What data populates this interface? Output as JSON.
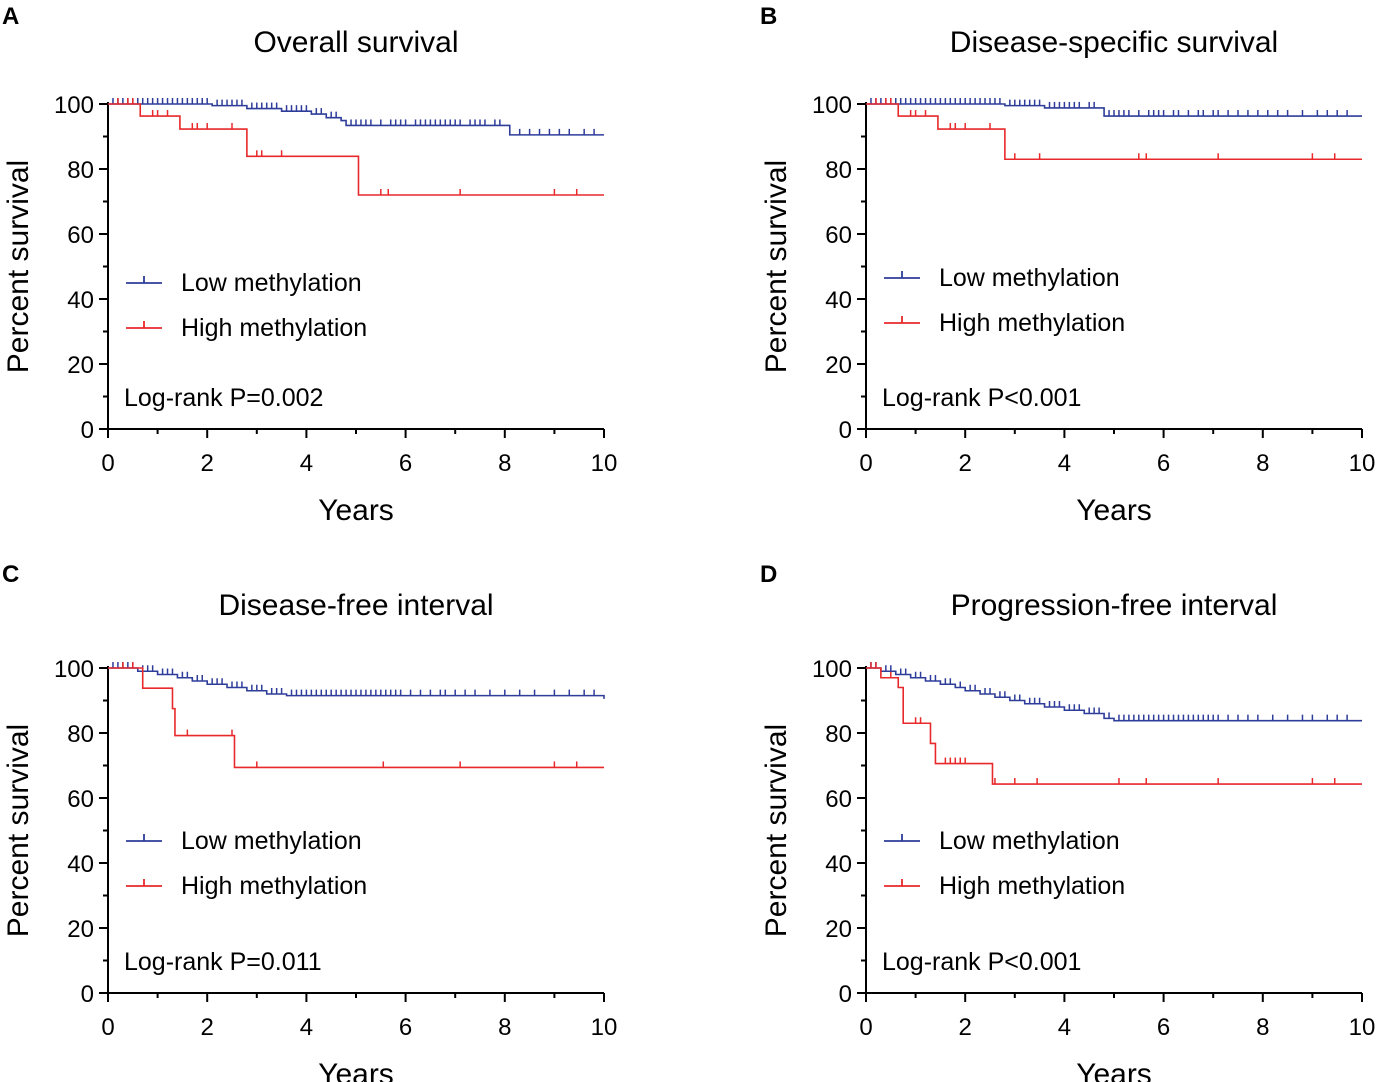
{
  "colors": {
    "low": "#2e3d9a",
    "high": "#e8292b",
    "axis": "#000000"
  },
  "chart_data": [
    {
      "type": "line",
      "subtype": "kaplan-meier",
      "panel": "A",
      "title": "Overall survival",
      "xlabel": "Years",
      "ylabel": "Percent survival",
      "xlim": [
        0,
        10
      ],
      "ylim": [
        0,
        100
      ],
      "xticks": [
        0,
        2,
        4,
        6,
        8,
        10
      ],
      "yticks": [
        0,
        20,
        40,
        60,
        80,
        100
      ],
      "legend_position": "center-left",
      "annotation": "Log-rank P=0.002",
      "series": [
        {
          "name": "Low methylation",
          "color_key": "low",
          "steps": [
            [
              0,
              100
            ],
            [
              2.1,
              99.5
            ],
            [
              2.8,
              98.6
            ],
            [
              3.5,
              97.8
            ],
            [
              4.1,
              96.9
            ],
            [
              4.4,
              95.8
            ],
            [
              4.7,
              94.9
            ],
            [
              4.8,
              93.4
            ],
            [
              8.1,
              90.5
            ],
            [
              10,
              90.5
            ]
          ],
          "censors": [
            0.1,
            0.2,
            0.3,
            0.4,
            0.5,
            0.6,
            0.7,
            0.8,
            0.9,
            1.0,
            1.1,
            1.2,
            1.3,
            1.4,
            1.5,
            1.6,
            1.7,
            1.8,
            1.9,
            2.0,
            2.2,
            2.3,
            2.4,
            2.5,
            2.6,
            2.7,
            2.9,
            3.0,
            3.1,
            3.2,
            3.3,
            3.4,
            3.6,
            3.7,
            3.8,
            3.9,
            4.0,
            4.2,
            4.3,
            4.5,
            4.6,
            4.9,
            5.0,
            5.1,
            5.2,
            5.3,
            5.5,
            5.7,
            5.8,
            5.9,
            6.0,
            6.2,
            6.3,
            6.4,
            6.5,
            6.6,
            6.7,
            6.8,
            6.9,
            7.0,
            7.1,
            7.3,
            7.4,
            7.5,
            7.6,
            7.8,
            7.9,
            8.3,
            8.5,
            8.7,
            8.9,
            9.1,
            9.3,
            9.6,
            9.8
          ]
        },
        {
          "name": "High methylation",
          "color_key": "high",
          "steps": [
            [
              0,
              100
            ],
            [
              0.65,
              96.3
            ],
            [
              1.45,
              92.3
            ],
            [
              2.8,
              83.9
            ],
            [
              5.05,
              72
            ],
            [
              10,
              72
            ]
          ],
          "censors": [
            0.2,
            0.4,
            0.5,
            0.9,
            1.0,
            1.2,
            1.7,
            1.8,
            2.0,
            2.5,
            3.0,
            3.1,
            3.5,
            5.5,
            5.65,
            7.1,
            9.0,
            9.45
          ]
        }
      ]
    },
    {
      "type": "line",
      "subtype": "kaplan-meier",
      "panel": "B",
      "title": "Disease-specific survival",
      "xlabel": "Years",
      "ylabel": "Percent survival",
      "xlim": [
        0,
        10
      ],
      "ylim": [
        0,
        100
      ],
      "xticks": [
        0,
        2,
        4,
        6,
        8,
        10
      ],
      "yticks": [
        0,
        20,
        40,
        60,
        80,
        100
      ],
      "legend_position": "center-left",
      "annotation": "Log-rank P<0.001",
      "series": [
        {
          "name": "Low methylation",
          "color_key": "low",
          "steps": [
            [
              0,
              100
            ],
            [
              2.8,
              99.5
            ],
            [
              3.6,
              98.8
            ],
            [
              4.8,
              96.3
            ],
            [
              10,
              96.3
            ]
          ],
          "censors": [
            0.1,
            0.2,
            0.3,
            0.4,
            0.5,
            0.6,
            0.7,
            0.8,
            0.9,
            1.0,
            1.1,
            1.2,
            1.3,
            1.4,
            1.5,
            1.6,
            1.7,
            1.8,
            1.9,
            2.0,
            2.1,
            2.2,
            2.3,
            2.4,
            2.5,
            2.6,
            2.7,
            2.9,
            3.0,
            3.1,
            3.2,
            3.3,
            3.4,
            3.5,
            3.7,
            3.8,
            3.9,
            4.0,
            4.1,
            4.2,
            4.3,
            4.5,
            4.6,
            4.9,
            5.0,
            5.1,
            5.2,
            5.3,
            5.5,
            5.7,
            5.8,
            5.9,
            6.0,
            6.2,
            6.3,
            6.5,
            6.7,
            6.8,
            7.0,
            7.1,
            7.3,
            7.5,
            7.7,
            7.9,
            8.1,
            8.3,
            8.5,
            8.8,
            9.1,
            9.3,
            9.5,
            9.7
          ]
        },
        {
          "name": "High methylation",
          "color_key": "high",
          "steps": [
            [
              0,
              100
            ],
            [
              0.65,
              96.3
            ],
            [
              1.45,
              92.3
            ],
            [
              2.8,
              83
            ],
            [
              10,
              83
            ]
          ],
          "censors": [
            0.2,
            0.4,
            0.5,
            0.9,
            1.0,
            1.2,
            1.7,
            1.8,
            2.0,
            2.5,
            3.0,
            3.5,
            5.5,
            5.65,
            7.1,
            9.0,
            9.45
          ]
        }
      ]
    },
    {
      "type": "line",
      "subtype": "kaplan-meier",
      "panel": "C",
      "title": "Disease-free interval",
      "xlabel": "Years",
      "ylabel": "Percent survival",
      "xlim": [
        0,
        10
      ],
      "ylim": [
        0,
        100
      ],
      "xticks": [
        0,
        2,
        4,
        6,
        8,
        10
      ],
      "yticks": [
        0,
        20,
        40,
        60,
        80,
        100
      ],
      "legend_position": "center-left",
      "annotation": "Log-rank P=0.011",
      "series": [
        {
          "name": "Low methylation",
          "color_key": "low",
          "steps": [
            [
              0,
              100
            ],
            [
              0.6,
              99
            ],
            [
              1.0,
              98
            ],
            [
              1.4,
              97
            ],
            [
              1.7,
              96
            ],
            [
              2.0,
              95
            ],
            [
              2.4,
              94
            ],
            [
              2.8,
              93
            ],
            [
              3.2,
              92
            ],
            [
              3.6,
              91.5
            ],
            [
              10,
              90.5
            ]
          ],
          "censors": [
            0.1,
            0.2,
            0.3,
            0.4,
            0.5,
            0.7,
            0.8,
            0.9,
            1.1,
            1.2,
            1.3,
            1.5,
            1.6,
            1.8,
            1.9,
            2.1,
            2.2,
            2.3,
            2.5,
            2.6,
            2.7,
            2.9,
            3.0,
            3.1,
            3.3,
            3.4,
            3.5,
            3.7,
            3.8,
            3.9,
            4.0,
            4.1,
            4.2,
            4.3,
            4.4,
            4.5,
            4.6,
            4.7,
            4.8,
            4.9,
            5.0,
            5.1,
            5.2,
            5.3,
            5.4,
            5.5,
            5.6,
            5.7,
            5.8,
            5.9,
            6.1,
            6.3,
            6.5,
            6.7,
            6.8,
            7.0,
            7.2,
            7.4,
            7.7,
            8.0,
            8.3,
            8.6,
            9.0,
            9.3,
            9.6,
            9.8
          ]
        },
        {
          "name": "High methylation",
          "color_key": "high",
          "steps": [
            [
              0,
              100
            ],
            [
              0.7,
              93.8
            ],
            [
              1.3,
              87.5
            ],
            [
              1.35,
              79.2
            ],
            [
              2.55,
              69.4
            ],
            [
              10,
              69.4
            ]
          ],
          "censors": [
            0.3,
            0.5,
            1.6,
            2.5,
            3.0,
            5.55,
            7.1,
            9.0,
            9.45
          ]
        }
      ]
    },
    {
      "type": "line",
      "subtype": "kaplan-meier",
      "panel": "D",
      "title": "Progression-free interval",
      "xlabel": "Years",
      "ylabel": "Percent survival",
      "xlim": [
        0,
        10
      ],
      "ylim": [
        0,
        100
      ],
      "xticks": [
        0,
        2,
        4,
        6,
        8,
        10
      ],
      "yticks": [
        0,
        20,
        40,
        60,
        80,
        100
      ],
      "legend_position": "center-left",
      "annotation": "Log-rank P<0.001",
      "series": [
        {
          "name": "Low methylation",
          "color_key": "low",
          "steps": [
            [
              0,
              100
            ],
            [
              0.3,
              99
            ],
            [
              0.6,
              98
            ],
            [
              0.9,
              97
            ],
            [
              1.2,
              96
            ],
            [
              1.5,
              95
            ],
            [
              1.8,
              94
            ],
            [
              2.0,
              93
            ],
            [
              2.3,
              92
            ],
            [
              2.6,
              91
            ],
            [
              2.9,
              90
            ],
            [
              3.2,
              89
            ],
            [
              3.6,
              88
            ],
            [
              4.0,
              87
            ],
            [
              4.4,
              86
            ],
            [
              4.8,
              84.5
            ],
            [
              5.0,
              83.8
            ],
            [
              10,
              83.8
            ]
          ],
          "censors": [
            0.1,
            0.2,
            0.4,
            0.5,
            0.7,
            0.8,
            1.0,
            1.1,
            1.3,
            1.4,
            1.6,
            1.7,
            1.9,
            2.1,
            2.2,
            2.4,
            2.5,
            2.7,
            2.8,
            3.0,
            3.1,
            3.3,
            3.4,
            3.5,
            3.7,
            3.8,
            3.9,
            4.1,
            4.2,
            4.3,
            4.5,
            4.6,
            4.7,
            4.9,
            5.1,
            5.2,
            5.3,
            5.4,
            5.5,
            5.6,
            5.7,
            5.8,
            5.9,
            6.0,
            6.1,
            6.2,
            6.3,
            6.4,
            6.5,
            6.6,
            6.7,
            6.8,
            6.9,
            7.0,
            7.1,
            7.3,
            7.5,
            7.7,
            7.9,
            8.2,
            8.5,
            8.8,
            9.0,
            9.3,
            9.5,
            9.7
          ]
        },
        {
          "name": "High methylation",
          "color_key": "high",
          "steps": [
            [
              0,
              100
            ],
            [
              0.3,
              97
            ],
            [
              0.65,
              94
            ],
            [
              0.75,
              83
            ],
            [
              1.3,
              76.8
            ],
            [
              1.4,
              70.6
            ],
            [
              2.55,
              64.3
            ],
            [
              10,
              64.3
            ]
          ],
          "censors": [
            0.1,
            0.2,
            0.5,
            1.0,
            1.1,
            1.6,
            1.7,
            1.8,
            1.9,
            2.0,
            2.6,
            3.0,
            3.45,
            5.1,
            5.65,
            7.1,
            9.0,
            9.45
          ]
        }
      ]
    }
  ]
}
